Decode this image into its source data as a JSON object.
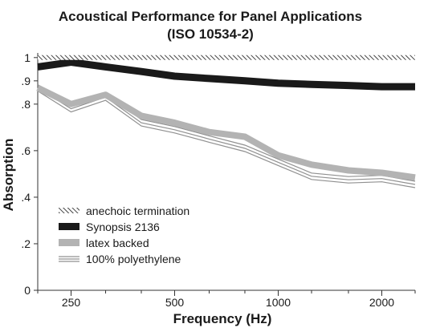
{
  "chart_data": {
    "type": "line",
    "title": "Acoustical Performance for Panel Applications",
    "subtitle": "(ISO 10534-2)",
    "xlabel": "Frequency (Hz)",
    "ylabel": "Absorption",
    "x_scale": "log",
    "x": [
      200,
      250,
      315,
      400,
      500,
      630,
      800,
      1000,
      1250,
      1600,
      2000,
      2500
    ],
    "x_ticks": [
      250,
      500,
      1000,
      2000
    ],
    "x_tick_labels": [
      "250",
      "500",
      "1000",
      "2000"
    ],
    "y_ticks": [
      0,
      0.2,
      0.4,
      0.6,
      0.8,
      0.9,
      1
    ],
    "y_tick_labels": [
      "0",
      ".2",
      ".4",
      ".6",
      ".8",
      ".9",
      "1"
    ],
    "ylim": [
      0,
      1.02
    ],
    "grid": false,
    "legend_position": "bottom-left",
    "series": [
      {
        "name": "anechoic termination",
        "style": "hatched",
        "color": "#555555",
        "values": [
          1.0,
          1.0,
          1.0,
          1.0,
          1.0,
          1.0,
          1.0,
          1.0,
          1.0,
          1.0,
          1.0,
          1.0
        ]
      },
      {
        "name": "Synopsis 2136",
        "style": "thick",
        "color": "#1a1a1a",
        "values": [
          0.96,
          0.98,
          0.96,
          0.94,
          0.92,
          0.91,
          0.9,
          0.89,
          0.885,
          0.88,
          0.875,
          0.875
        ]
      },
      {
        "name": "latex backed",
        "style": "thick",
        "color": "#b3b3b3",
        "values": [
          0.87,
          0.8,
          0.84,
          0.75,
          0.72,
          0.68,
          0.66,
          0.58,
          0.54,
          0.515,
          0.505,
          0.485
        ]
      },
      {
        "name": "100% polyethylene",
        "style": "triple-line",
        "color": "#909090",
        "values": [
          0.87,
          0.78,
          0.83,
          0.72,
          0.69,
          0.65,
          0.61,
          0.55,
          0.49,
          0.475,
          0.48,
          0.455
        ]
      }
    ]
  }
}
